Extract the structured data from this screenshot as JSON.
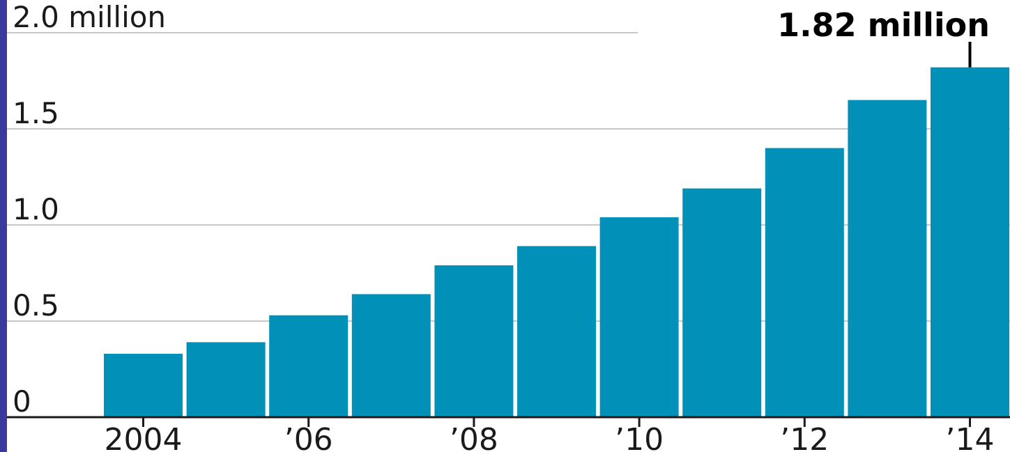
{
  "chart_data": {
    "type": "bar",
    "categories": [
      "2004",
      "2005",
      "2006",
      "2007",
      "2008",
      "2009",
      "2010",
      "2011",
      "2012",
      "2013",
      "2014"
    ],
    "values": [
      0.33,
      0.39,
      0.53,
      0.64,
      0.79,
      0.89,
      1.04,
      1.19,
      1.4,
      1.65,
      1.82
    ],
    "ylim": [
      0,
      2.0
    ],
    "yticks": [
      0,
      0.5,
      1.0,
      1.5,
      2.0
    ],
    "ytick_labels": [
      "0",
      "0.5",
      "1.0",
      "1.5",
      "2.0 million"
    ],
    "xtick_labels": [
      {
        "category": "2004",
        "label": "2004"
      },
      {
        "category": "2006",
        "label": "’06"
      },
      {
        "category": "2008",
        "label": "’08"
      },
      {
        "category": "2010",
        "label": "’10"
      },
      {
        "category": "2012",
        "label": "’12"
      },
      {
        "category": "2014",
        "label": "’14"
      }
    ],
    "annotation": {
      "category": "2014",
      "text": "1.82 million"
    },
    "grid": true,
    "colors": {
      "bar": "#0090b8",
      "grid": "#c8c8c8",
      "axis": "#1a1a1a"
    }
  }
}
